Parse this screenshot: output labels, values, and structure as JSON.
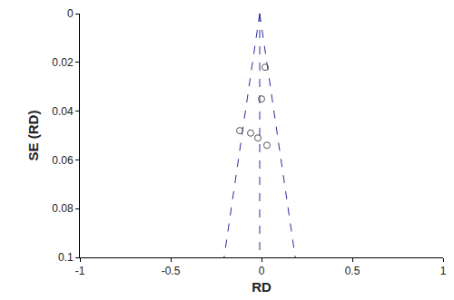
{
  "chart_data": {
    "type": "scatter",
    "x_label": "RD",
    "y_label": "SE (RD)",
    "points": {
      "x": [
        0.02,
        0.0,
        -0.12,
        -0.06,
        -0.02,
        0.03
      ],
      "y": [
        0.022,
        0.035,
        0.048,
        0.049,
        0.051,
        0.054
      ],
      "marker": "open circle",
      "color": "#555555"
    },
    "lines": [
      {
        "x": [
          -0.01,
          -0.206
        ],
        "y": [
          0,
          0.1
        ],
        "line_style": "dashed",
        "color": "#2b2b99"
      },
      {
        "x": [
          -0.01,
          0.186
        ],
        "y": [
          0,
          0.1
        ],
        "line_style": "dashed",
        "color": "#2b2b99"
      },
      {
        "x": [
          -0.01,
          -0.01
        ],
        "y": [
          0,
          0.1
        ],
        "line_style": "dashed",
        "color": "#2b2b99"
      }
    ],
    "xlim": [
      -1,
      1
    ],
    "xticks": [
      -1,
      -0.5,
      0,
      0.5,
      1
    ],
    "ylim": [
      0,
      0.1
    ],
    "yticks": [
      0,
      0.02,
      0.04,
      0.06,
      0.08,
      0.1
    ],
    "grid": false
  }
}
